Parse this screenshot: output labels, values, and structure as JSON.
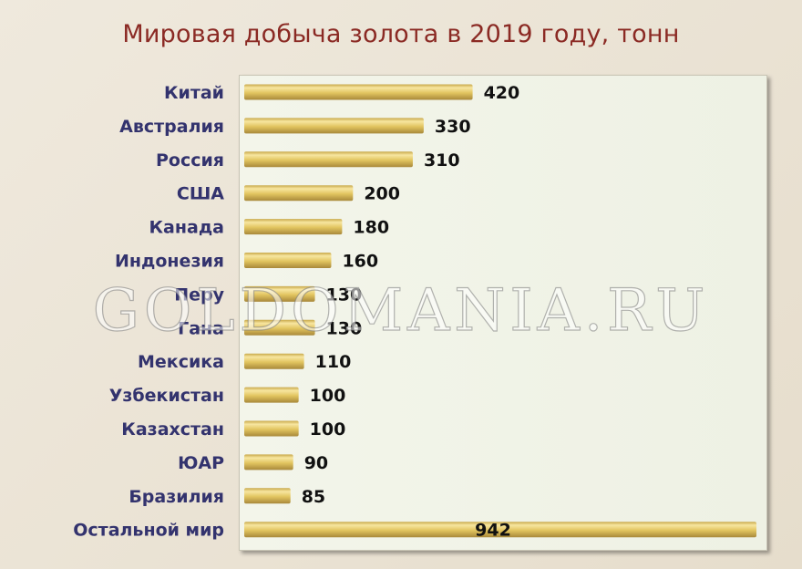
{
  "chart_data": {
    "type": "bar",
    "orientation": "horizontal",
    "title": "Мировая добыча золота в 2019 году, тонн",
    "categories": [
      "Китай",
      "Австралия",
      "Россия",
      "США",
      "Канада",
      "Индонезия",
      "Перу",
      "Гана",
      "Мексика",
      "Узбекистан",
      "Казахстан",
      "ЮАР",
      "Бразилия",
      "Остальной мир"
    ],
    "values": [
      420,
      330,
      310,
      200,
      180,
      160,
      130,
      130,
      110,
      100,
      100,
      90,
      85,
      942
    ],
    "data_labels": [
      "420",
      "330",
      "310",
      "200",
      "180",
      "160",
      "130",
      "130",
      "110",
      "100",
      "100",
      "90",
      "85",
      "942"
    ],
    "xlim": [
      0,
      942
    ],
    "grid": false,
    "legend": "none",
    "bar_color": "#e8cf72"
  },
  "watermark": "GOLDOMANIA.RU"
}
